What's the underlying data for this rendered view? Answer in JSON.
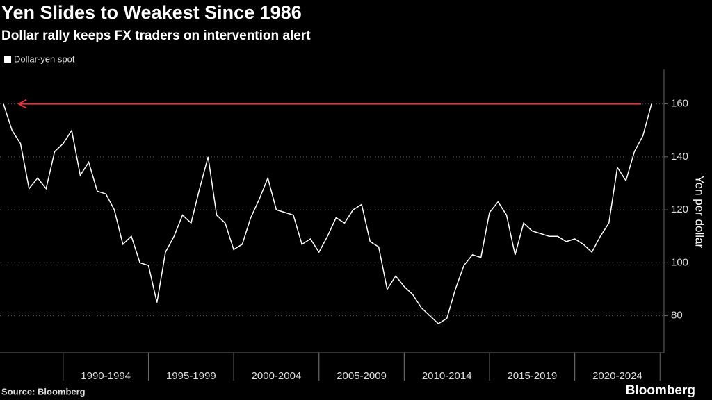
{
  "chart_data": {
    "type": "line",
    "title": "Yen Slides to Weakest Since 1986",
    "subtitle": "Dollar rally keeps FX traders on intervention alert",
    "y_axis_label": "Yen per dollar",
    "source": "Source: Bloomberg",
    "brand": "Bloomberg",
    "categories": [
      null,
      null,
      null,
      null,
      null,
      null,
      null,
      null,
      null,
      null,
      null,
      null,
      "1990-1994",
      null,
      null,
      null,
      null,
      null,
      null,
      null,
      null,
      null,
      "1995-1999",
      null,
      null,
      null,
      null,
      null,
      null,
      null,
      null,
      null,
      "2000-2004",
      null,
      null,
      null,
      null,
      null,
      null,
      null,
      null,
      null,
      "2005-2009",
      null,
      null,
      null,
      null,
      null,
      null,
      null,
      null,
      null,
      "2010-2014",
      null,
      null,
      null,
      null,
      null,
      null,
      null,
      null,
      null,
      "2015-2019",
      null,
      null,
      null,
      null,
      null,
      null,
      null,
      null,
      null,
      "2020-2024",
      null,
      null,
      null,
      null
    ],
    "series": [
      {
        "name": "Dollar-yen spot",
        "color": "#ffffff",
        "values": [
          160,
          150,
          145,
          128,
          132,
          128,
          142,
          145,
          150,
          133,
          138,
          127,
          126,
          120,
          107,
          110,
          100,
          99,
          85,
          104,
          110,
          118,
          115,
          128,
          140,
          118,
          115,
          105,
          107,
          117,
          124,
          132,
          120,
          119,
          118,
          107,
          109,
          104,
          110,
          117,
          115,
          120,
          122,
          108,
          106,
          90,
          95,
          91,
          88,
          83,
          80,
          77,
          79,
          90,
          99,
          103,
          102,
          119,
          123,
          118,
          103,
          115,
          112,
          111,
          110,
          110,
          108,
          109,
          107,
          104,
          110,
          115,
          136,
          131,
          142,
          148,
          160
        ]
      }
    ],
    "reference_line": {
      "value": 160,
      "color": "#e0343c"
    },
    "ylim": [
      66,
      173
    ],
    "yticks": [
      80,
      100,
      120,
      140,
      160
    ],
    "grid": true
  }
}
